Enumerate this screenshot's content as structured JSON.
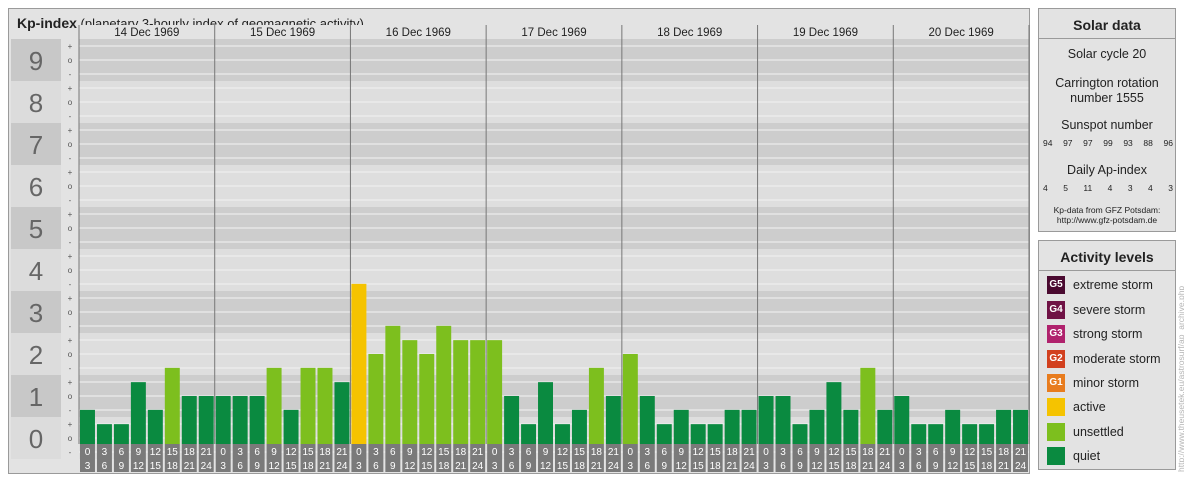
{
  "header": {
    "title": "Kp-index",
    "subtitle": "(planetary 3-hourly index of geomagnetic activity)"
  },
  "solar": {
    "title": "Solar data",
    "cycle": "Solar cycle 20",
    "carrington_line1": "Carrington rotation",
    "carrington_line2": "number 1555",
    "sunspot_label": "Sunspot number",
    "sunspot_values": [
      "94",
      "97",
      "97",
      "99",
      "93",
      "88",
      "96"
    ],
    "ap_label": "Daily Ap-index",
    "ap_values": [
      "4",
      "5",
      "11",
      "4",
      "3",
      "4",
      "3"
    ],
    "source_line1": "Kp-data from GFZ Potsdam:",
    "source_line2": "http://www.gfz-potsdam.de"
  },
  "levels": {
    "title": "Activity levels",
    "items": [
      {
        "code": "G5",
        "label": "extreme storm",
        "color": "#4a0a30"
      },
      {
        "code": "G4",
        "label": "severe storm",
        "color": "#6f1245"
      },
      {
        "code": "G3",
        "label": "strong storm",
        "color": "#b0226d"
      },
      {
        "code": "G2",
        "label": "moderate storm",
        "color": "#d2401e"
      },
      {
        "code": "G1",
        "label": "minor storm",
        "color": "#e87c1e"
      },
      {
        "code": "",
        "label": "active",
        "color": "#f5c300"
      },
      {
        "code": "",
        "label": "unsettled",
        "color": "#7dbf1e"
      },
      {
        "code": "",
        "label": "quiet",
        "color": "#0a8a40"
      }
    ]
  },
  "credit": "http://www.theusetek.eu/astrosurf/ap_archive.php",
  "chart_data": {
    "type": "bar",
    "ylim": [
      0,
      9
    ],
    "yticks": [
      "0",
      "1",
      "2",
      "3",
      "4",
      "5",
      "6",
      "7",
      "8",
      "9"
    ],
    "minor_labels": [
      "-",
      "o",
      "+"
    ],
    "days": [
      "14 Dec 1969",
      "15 Dec 1969",
      "16 Dec 1969",
      "17 Dec 1969",
      "18 Dec 1969",
      "19 Dec 1969",
      "20 Dec 1969"
    ],
    "interval_start": [
      "0",
      "3",
      "6",
      "9",
      "12",
      "15",
      "18",
      "21"
    ],
    "interval_end": [
      "3",
      "6",
      "9",
      "12",
      "15",
      "18",
      "21",
      "24"
    ],
    "values": [
      0.67,
      0.33,
      0.33,
      1.33,
      0.67,
      1.67,
      1,
      1,
      1,
      1,
      1,
      1.67,
      0.67,
      1.67,
      1.67,
      1.33,
      3.67,
      2,
      2.67,
      2.33,
      2,
      2.67,
      2.33,
      2.33,
      2.33,
      1,
      0.33,
      1.33,
      0.33,
      0.67,
      1.67,
      1,
      2,
      1,
      0.33,
      0.67,
      0.33,
      0.33,
      0.67,
      0.67,
      1,
      1,
      0.33,
      0.67,
      1.33,
      0.67,
      1.67,
      0.67,
      1,
      0.33,
      0.33,
      0.67,
      0.33,
      0.33,
      0.67,
      0.67
    ],
    "colors": {
      "quiet": "#0a8a40",
      "unsettled": "#7dbf1e",
      "active": "#f5c300"
    }
  }
}
